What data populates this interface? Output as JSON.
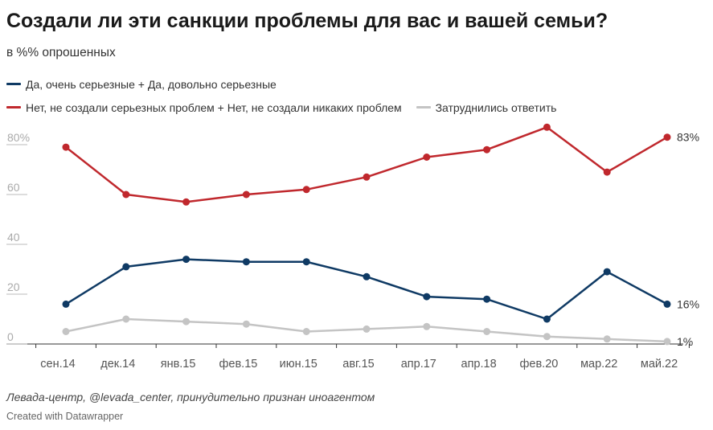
{
  "header": {
    "title": "Создали ли эти санкции проблемы для вас и вашей семьи?",
    "subtitle": "в %% опрошенных"
  },
  "legend": [
    {
      "label": "Да, очень серьезные + Да, довольно серьезные",
      "color": "#0f3a64"
    },
    {
      "label": "Нет, не создали серьезных проблем + Нет, не создали никаких проблем",
      "color": "#c0282d"
    },
    {
      "label": "Затруднились ответить",
      "color": "#c4c4c4"
    }
  ],
  "chart_data": {
    "type": "line",
    "categories": [
      "сен.14",
      "дек.14",
      "янв.15",
      "фев.15",
      "июн.15",
      "авг.15",
      "апр.17",
      "апр.18",
      "фев.20",
      "мар.22",
      "май.22"
    ],
    "y_ticks": [
      {
        "value": 80,
        "label": "80%"
      },
      {
        "value": 60,
        "label": "60"
      },
      {
        "value": 40,
        "label": "40"
      },
      {
        "value": 20,
        "label": "20"
      },
      {
        "value": 0,
        "label": "0"
      }
    ],
    "ylim": [
      0,
      85
    ],
    "grid": false,
    "legend_position": "top-left",
    "series": [
      {
        "name": "Да, очень серьезные + Да, довольно серьезные",
        "color": "#0f3a64",
        "values": [
          16,
          31,
          34,
          33,
          33,
          27,
          19,
          18,
          10,
          29,
          16
        ],
        "end_label": "16%"
      },
      {
        "name": "Нет, не создали серьезных проблем + Нет, не создали никаких проблем",
        "color": "#c0282d",
        "values": [
          79,
          60,
          57,
          60,
          62,
          67,
          75,
          78,
          87,
          69,
          83
        ],
        "end_label": "83%"
      },
      {
        "name": "Затруднились ответить",
        "color": "#c4c4c4",
        "values": [
          5,
          10,
          9,
          8,
          5,
          6,
          7,
          5,
          3,
          2,
          1
        ],
        "end_label": "1%"
      }
    ]
  },
  "footer": {
    "source": "Левада-центр, @levada_center, принудительно признан иноагентом",
    "credit": "Created with Datawrapper"
  }
}
